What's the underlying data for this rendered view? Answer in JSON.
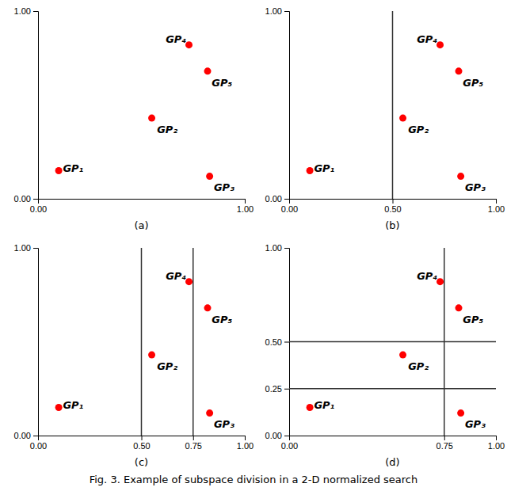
{
  "chart_data": [
    {
      "type": "scatter",
      "xlabel": "(a)",
      "x": [
        0.1,
        0.55,
        0.83,
        0.73,
        0.82
      ],
      "values": [
        0.15,
        0.43,
        0.12,
        0.82,
        0.68
      ],
      "labels": [
        "GP₁",
        "GP₂",
        "GP₃",
        "GP₄",
        "GP₅"
      ],
      "color": "#ff0000",
      "xlim": [
        0.0,
        1.0
      ],
      "ylim": [
        0.0,
        1.0
      ],
      "xticks": [
        {
          "value": 0.0,
          "label": "0.00"
        },
        {
          "value": 1.0,
          "label": "1.00"
        }
      ],
      "yticks": [
        {
          "value": 0.0,
          "label": "0.00"
        },
        {
          "value": 1.0,
          "label": "1.00"
        }
      ]
    },
    {
      "type": "scatter",
      "xlabel": "(b)",
      "x": [
        0.1,
        0.55,
        0.83,
        0.73,
        0.82
      ],
      "values": [
        0.15,
        0.43,
        0.12,
        0.82,
        0.68
      ],
      "labels": [
        "GP₁",
        "GP₂",
        "GP₃",
        "GP₄",
        "GP₅"
      ],
      "color": "#ff0000",
      "xlim": [
        0.0,
        1.0
      ],
      "ylim": [
        0.0,
        1.0
      ],
      "xticks": [
        {
          "value": 0.0,
          "label": "0.00"
        },
        {
          "value": 0.5,
          "label": "0.50"
        },
        {
          "value": 1.0,
          "label": "1.00"
        }
      ],
      "yticks": [
        {
          "value": 0.0,
          "label": "0.00"
        },
        {
          "value": 1.0,
          "label": "1.00"
        }
      ],
      "vlines": [
        0.5
      ]
    },
    {
      "type": "scatter",
      "xlabel": "(c)",
      "x": [
        0.1,
        0.55,
        0.83,
        0.73,
        0.82
      ],
      "values": [
        0.15,
        0.43,
        0.12,
        0.82,
        0.68
      ],
      "labels": [
        "GP₁",
        "GP₂",
        "GP₃",
        "GP₄",
        "GP₅"
      ],
      "color": "#ff0000",
      "xlim": [
        0.0,
        1.0
      ],
      "ylim": [
        0.0,
        1.0
      ],
      "xticks": [
        {
          "value": 0.0,
          "label": "0.00"
        },
        {
          "value": 0.5,
          "label": "0.50"
        },
        {
          "value": 0.75,
          "label": "0.75"
        },
        {
          "value": 1.0,
          "label": "1.00"
        }
      ],
      "yticks": [
        {
          "value": 0.0,
          "label": "0.00"
        },
        {
          "value": 1.0,
          "label": "1.00"
        }
      ],
      "vlines": [
        0.5,
        0.75
      ]
    },
    {
      "type": "scatter",
      "xlabel": "(d)",
      "x": [
        0.1,
        0.55,
        0.83,
        0.73,
        0.82
      ],
      "values": [
        0.15,
        0.43,
        0.12,
        0.82,
        0.68
      ],
      "labels": [
        "GP₁",
        "GP₂",
        "GP₃",
        "GP₄",
        "GP₅"
      ],
      "color": "#ff0000",
      "xlim": [
        0.0,
        1.0
      ],
      "ylim": [
        0.0,
        1.0
      ],
      "xticks": [
        {
          "value": 0.0,
          "label": "0.00"
        },
        {
          "value": 0.75,
          "label": "0.75"
        },
        {
          "value": 1.0,
          "label": "1.00"
        }
      ],
      "yticks": [
        {
          "value": 0.0,
          "label": "0.00"
        },
        {
          "value": 0.25,
          "label": "0.25"
        },
        {
          "value": 0.5,
          "label": "0.50"
        },
        {
          "value": 1.0,
          "label": "1.00"
        }
      ],
      "vlines": [
        0.75
      ],
      "hlines": [
        0.25,
        0.5
      ]
    }
  ],
  "caption": "Fig. 3.  Example of subspace division in a 2-D normalized search"
}
